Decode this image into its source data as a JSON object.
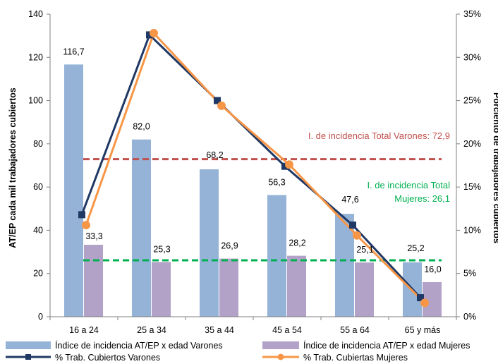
{
  "chart_data": {
    "type": "bar",
    "categories": [
      "16 a 24",
      "25 a 34",
      "35 a 44",
      "45 a 54",
      "55 a 64",
      "65 y más"
    ],
    "series": [
      {
        "name": "Índice de incidencia AT/EP x edad Varones",
        "kind": "bar",
        "axis": "left",
        "color": "#95b3d7",
        "values": [
          116.7,
          82.0,
          68.2,
          56.3,
          47.6,
          25.2
        ],
        "labels": [
          "116,7",
          "82,0",
          "68,2",
          "56,3",
          "47,6",
          "25,2"
        ]
      },
      {
        "name": "Índice de incidencia AT/EP x edad Mujeres",
        "kind": "bar",
        "axis": "left",
        "color": "#b2a2c7",
        "values": [
          33.3,
          25.3,
          26.9,
          28.2,
          25.1,
          16.0
        ],
        "labels": [
          "33,3",
          "25,3",
          "26,9",
          "28,2",
          "25,1",
          "16,0"
        ]
      },
      {
        "name": "% Trab. Cubiertos Varones",
        "kind": "line",
        "axis": "right",
        "marker": "square",
        "color": "#1f3864",
        "values": [
          0.118,
          0.326,
          0.25,
          0.174,
          0.106,
          0.022
        ]
      },
      {
        "name": "% Trab. Cubiertas Mujeres",
        "kind": "line",
        "axis": "right",
        "marker": "circle",
        "color": "#f79646",
        "values": [
          0.106,
          0.328,
          0.244,
          0.176,
          0.094,
          0.016
        ]
      }
    ],
    "reference_lines": [
      {
        "value": 72.9,
        "axis": "left",
        "color": "#c0504d",
        "label_lines": [
          "I. de incidencia Total Varones: 72,9"
        ]
      },
      {
        "value": 26.1,
        "axis": "left",
        "color": "#00b050",
        "label_lines": [
          "I. de incidencia Total",
          "Mujeres: 26,1"
        ]
      }
    ],
    "y_left": {
      "label": "AT/EP  cada mil trabajadores cubiertos",
      "min": 0,
      "max": 140,
      "ticks": [
        0,
        20,
        40,
        60,
        80,
        100,
        120,
        140
      ],
      "tick_labels": [
        "0",
        "20",
        "40",
        "60",
        "80",
        "100",
        "120",
        "140"
      ]
    },
    "y_right": {
      "label": "Porciento de trabajadores cubiertos",
      "min": 0,
      "max": 0.35,
      "ticks": [
        0,
        0.05,
        0.1,
        0.15,
        0.2,
        0.25,
        0.3,
        0.35
      ],
      "tick_labels": [
        "0%",
        "5%",
        "10%",
        "15%",
        "20%",
        "25%",
        "30%",
        "35%"
      ]
    },
    "grid": false,
    "legend_position": "bottom"
  }
}
